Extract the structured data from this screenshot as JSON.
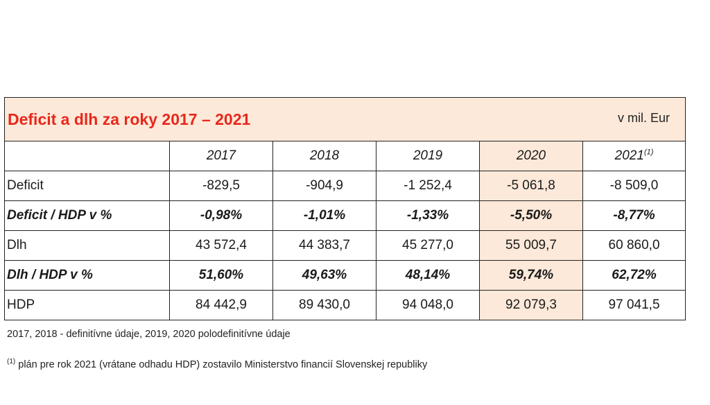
{
  "title": "Deficit a dlh za roky 2017 – 2021",
  "unit": "v mil. Eur",
  "years": [
    "2017",
    "2018",
    "2019",
    "2020",
    "2021"
  ],
  "year_footnote_2021": "(1)",
  "rows": [
    {
      "label": "Deficit",
      "values": [
        "-829,5",
        "-904,9",
        "-1 252,4",
        "-5 061,8",
        "-8 509,0"
      ]
    },
    {
      "label": "Deficit / HDP v %",
      "values": [
        "-0,98%",
        "-1,01%",
        "-1,33%",
        "-5,50%",
        "-8,77%"
      ]
    },
    {
      "label": "Dlh",
      "values": [
        "43 572,4",
        "44 383,7",
        "45 277,0",
        "55 009,7",
        "60 860,0"
      ]
    },
    {
      "label": "Dlh / HDP v %",
      "values": [
        "51,60%",
        "49,63%",
        "48,14%",
        "59,74%",
        "62,72%"
      ]
    },
    {
      "label": "HDP",
      "values": [
        "84 442,9",
        "89 430,0",
        "94 048,0",
        "92 079,3",
        "97 041,5"
      ]
    }
  ],
  "notes": {
    "note1": "2017, 2018 - definitívne údaje, 2019, 2020 polodefinitívne údaje",
    "note2_marker": "(1)",
    "note2": " plán pre rok 2021 (vrátane odhadu HDP) zostavilo Ministerstvo financií Slovenskej republiky"
  },
  "colors": {
    "title": "#e8271c",
    "highlight_bg": "#fde9d9"
  }
}
